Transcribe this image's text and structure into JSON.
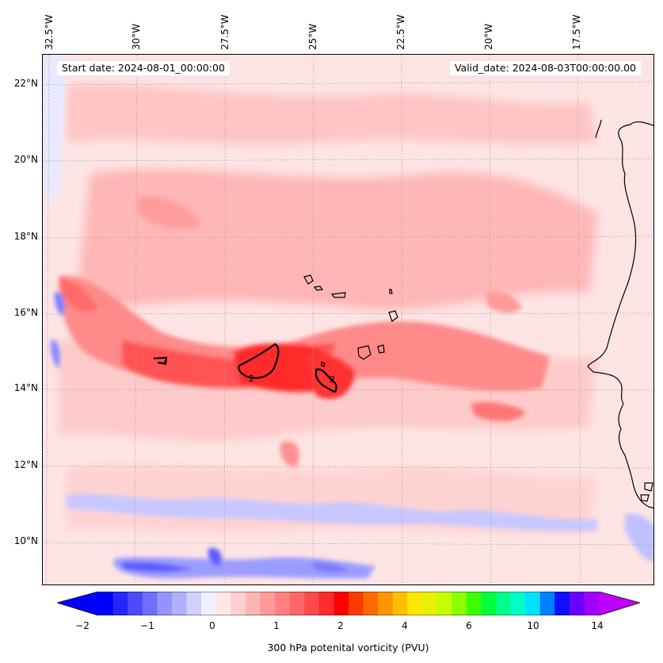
{
  "map": {
    "start_date": "Start date: 2024-08-01_00:00:00",
    "valid_date": "Valid_date: 2024-08-03T00:00:00.00",
    "longitude_labels": [
      "32.5°W",
      "30°W",
      "27.5°W",
      "25°W",
      "22.5°W",
      "20°W",
      "17.5°W"
    ],
    "latitude_labels": [
      "22°N",
      "20°N",
      "18°N",
      "16°N",
      "14°N",
      "12°N",
      "10°N"
    ],
    "contour_label": "2",
    "contour_level": "2 PVU"
  },
  "colorbar": {
    "label": "300 hPa potenital vorticity (PVU)",
    "tick_labels": [
      "−2",
      "−1",
      "0",
      "1",
      "2",
      "4",
      "6",
      "10",
      "14"
    ],
    "colors": [
      "#0000ff",
      "#2525ff",
      "#4a4aff",
      "#6f6fff",
      "#9494ff",
      "#b0b0ff",
      "#d0d0ff",
      "#efefff",
      "#ffe6e6",
      "#ffcfcf",
      "#ffb4b4",
      "#ff9a9a",
      "#ff8080",
      "#ff6666",
      "#ff4a4a",
      "#ff2a2a",
      "#ff0000",
      "#ff3a00",
      "#ff6a00",
      "#ff9500",
      "#ffbf00",
      "#ffe600",
      "#e8f000",
      "#c2ff00",
      "#8cff00",
      "#3cff00",
      "#00ff3a",
      "#00ff8a",
      "#00ffc8",
      "#00e0ff",
      "#0080ff",
      "#1010ff",
      "#6a00ff",
      "#a000ff"
    ],
    "min_extend_color": "#0000ff",
    "max_extend_color": "#c000ff"
  }
}
